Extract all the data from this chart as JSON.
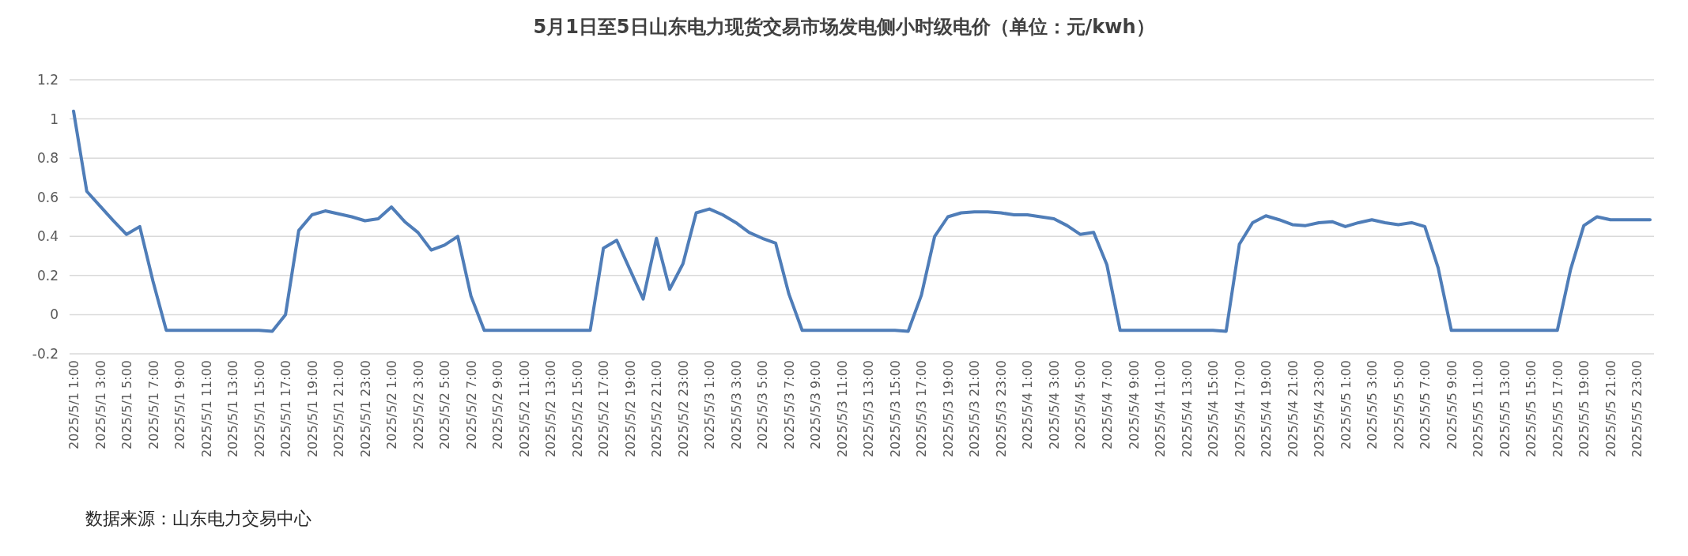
{
  "chart_data": {
    "type": "line",
    "title": "5月1日至5日山东电力现货交易市场发电侧小时级电价（单位：元/kwh）",
    "annotations": [
      "数据来源：山东电力交易中心"
    ],
    "categories": [
      "2025/5/1 1:00",
      null,
      "2025/5/1 3:00",
      null,
      "2025/5/1 5:00",
      null,
      "2025/5/1 7:00",
      null,
      "2025/5/1 9:00",
      null,
      "2025/5/1 11:00",
      null,
      "2025/5/1 13:00",
      null,
      "2025/5/1 15:00",
      null,
      "2025/5/1 17:00",
      null,
      "2025/5/1 19:00",
      null,
      "2025/5/1 21:00",
      null,
      "2025/5/1 23:00",
      null,
      "2025/5/2 1:00",
      null,
      "2025/5/2 3:00",
      null,
      "2025/5/2 5:00",
      null,
      "2025/5/2 7:00",
      null,
      "2025/5/2 9:00",
      null,
      "2025/5/2 11:00",
      null,
      "2025/5/2 13:00",
      null,
      "2025/5/2 15:00",
      null,
      "2025/5/2 17:00",
      null,
      "2025/5/2 19:00",
      null,
      "2025/5/2 21:00",
      null,
      "2025/5/2 23:00",
      null,
      "2025/5/3 1:00",
      null,
      "2025/5/3 3:00",
      null,
      "2025/5/3 5:00",
      null,
      "2025/5/3 7:00",
      null,
      "2025/5/3 9:00",
      null,
      "2025/5/3 11:00",
      null,
      "2025/5/3 13:00",
      null,
      "2025/5/3 15:00",
      null,
      "2025/5/3 17:00",
      null,
      "2025/5/3 19:00",
      null,
      "2025/5/3 21:00",
      null,
      "2025/5/3 23:00",
      null,
      "2025/5/4 1:00",
      null,
      "2025/5/4 3:00",
      null,
      "2025/5/4 5:00",
      null,
      "2025/5/4 7:00",
      null,
      "2025/5/4 9:00",
      null,
      "2025/5/4 11:00",
      null,
      "2025/5/4 13:00",
      null,
      "2025/5/4 15:00",
      null,
      "2025/5/4 17:00",
      null,
      "2025/5/4 19:00",
      null,
      "2025/5/4 21:00",
      null,
      "2025/5/4 23:00",
      null,
      "2025/5/5 1:00",
      null,
      "2025/5/5 3:00",
      null,
      "2025/5/5 5:00",
      null,
      "2025/5/5 7:00",
      null,
      "2025/5/5 9:00",
      null,
      "2025/5/5 11:00",
      null,
      "2025/5/5 13:00",
      null,
      "2025/5/5 15:00",
      null,
      "2025/5/5 17:00",
      null,
      "2025/5/5 19:00",
      null,
      "2025/5/5 21:00",
      null,
      "2025/5/5 23:00",
      null
    ],
    "series": [
      {
        "color": "#4f7db8",
        "values": [
          1.04,
          0.63,
          0.555,
          0.48,
          0.41,
          0.45,
          0.17,
          -0.08,
          -0.08,
          -0.08,
          -0.08,
          -0.08,
          -0.08,
          -0.08,
          -0.08,
          -0.085,
          0.0,
          0.43,
          0.51,
          0.53,
          0.515,
          0.5,
          0.48,
          0.49,
          0.55,
          0.475,
          0.42,
          0.33,
          0.355,
          0.4,
          0.095,
          -0.08,
          -0.08,
          -0.08,
          -0.08,
          -0.08,
          -0.08,
          -0.08,
          -0.08,
          -0.08,
          0.34,
          0.38,
          0.23,
          0.08,
          0.39,
          0.13,
          0.26,
          0.52,
          0.54,
          0.51,
          0.47,
          0.42,
          0.39,
          0.365,
          0.105,
          -0.08,
          -0.08,
          -0.08,
          -0.08,
          -0.08,
          -0.08,
          -0.08,
          -0.08,
          -0.085,
          0.1,
          0.4,
          0.5,
          0.52,
          0.525,
          0.525,
          0.52,
          0.51,
          0.51,
          0.5,
          0.49,
          0.455,
          0.41,
          0.42,
          0.255,
          -0.08,
          -0.08,
          -0.08,
          -0.08,
          -0.08,
          -0.08,
          -0.08,
          -0.08,
          -0.085,
          0.36,
          0.47,
          0.505,
          0.485,
          0.46,
          0.455,
          0.47,
          0.475,
          0.45,
          0.47,
          0.485,
          0.47,
          0.46,
          0.47,
          0.45,
          0.24,
          -0.08,
          -0.08,
          -0.08,
          -0.08,
          -0.08,
          -0.08,
          -0.08,
          -0.08,
          -0.08,
          0.23,
          0.455,
          0.5,
          0.485,
          0.485,
          0.485,
          0.485
        ]
      }
    ],
    "ylim": [
      -0.2,
      1.2
    ],
    "yticks": [
      -0.2,
      0,
      0.2,
      0.4,
      0.6,
      0.8,
      1,
      1.2
    ],
    "grid": "y"
  }
}
